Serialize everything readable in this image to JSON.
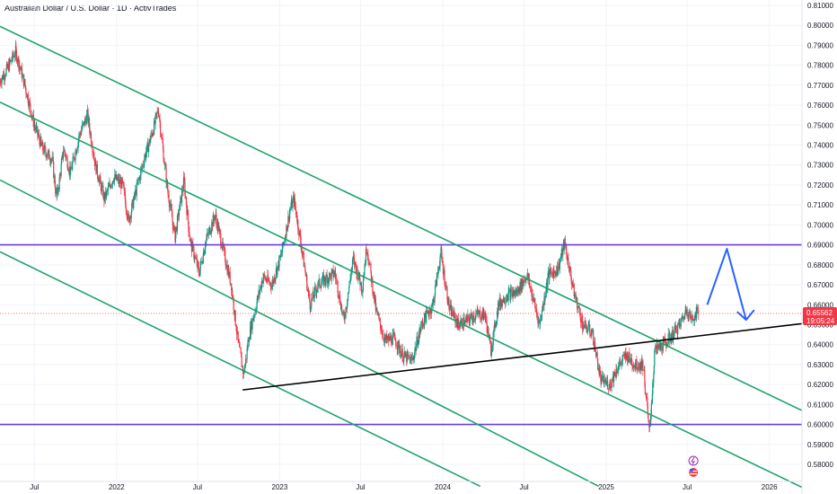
{
  "header": {
    "title": "Australian Dollar / U.S. Dollar · 1D · ActivTrades"
  },
  "price_label": {
    "value": "0.65562",
    "countdown": "19:05:24",
    "color": "#f23645"
  },
  "icons": [
    "lightning-icon",
    "us-flag-icon"
  ],
  "colors": {
    "up": "#089981",
    "down": "#f23645",
    "channel": "#1ea36a",
    "horizontal": "#6c3fd9",
    "trendline": "#000000",
    "arrow": "#2962ff"
  },
  "chart_data": {
    "type": "candlestick",
    "title": "Australian Dollar / U.S. Dollar · 1D · ActivTrades",
    "x_ticks": [
      "Jul",
      "2022",
      "Jul",
      "2023",
      "Jul",
      "2024",
      "Jul",
      "2025",
      "Jul",
      "2026"
    ],
    "x_tick_dates": [
      "2021-07-01",
      "2022-01-01",
      "2022-07-01",
      "2023-01-01",
      "2023-07-01",
      "2024-01-01",
      "2024-07-01",
      "2025-01-01",
      "2025-07-01",
      "2026-01-01"
    ],
    "y_ticks": [
      "0.81000",
      "0.80000",
      "0.79000",
      "0.78000",
      "0.77000",
      "0.76000",
      "0.75000",
      "0.74000",
      "0.73000",
      "0.72000",
      "0.71000",
      "0.70000",
      "0.69000",
      "0.68000",
      "0.67000",
      "0.66000",
      "0.65000",
      "0.64000",
      "0.63000",
      "0.62000",
      "0.61000",
      "0.60000",
      "0.59000",
      "0.58000"
    ],
    "ylim": [
      0.5775,
      0.8125
    ],
    "xlim": [
      "2021-04-15",
      "2026-03-15"
    ],
    "last_price": 0.65562,
    "series_close_weekly": [
      {
        "x": "2021-04-15",
        "y": 0.772
      },
      {
        "x": "2021-05-01",
        "y": 0.778
      },
      {
        "x": "2021-05-20",
        "y": 0.787
      },
      {
        "x": "2021-06-10",
        "y": 0.77
      },
      {
        "x": "2021-07-01",
        "y": 0.75
      },
      {
        "x": "2021-07-20",
        "y": 0.738
      },
      {
        "x": "2021-08-10",
        "y": 0.733
      },
      {
        "x": "2021-08-20",
        "y": 0.713
      },
      {
        "x": "2021-09-05",
        "y": 0.738
      },
      {
        "x": "2021-09-20",
        "y": 0.726
      },
      {
        "x": "2021-10-10",
        "y": 0.745
      },
      {
        "x": "2021-10-28",
        "y": 0.755
      },
      {
        "x": "2021-11-15",
        "y": 0.73
      },
      {
        "x": "2021-12-05",
        "y": 0.713
      },
      {
        "x": "2021-12-25",
        "y": 0.724
      },
      {
        "x": "2022-01-15",
        "y": 0.72
      },
      {
        "x": "2022-01-28",
        "y": 0.702
      },
      {
        "x": "2022-02-15",
        "y": 0.718
      },
      {
        "x": "2022-03-05",
        "y": 0.734
      },
      {
        "x": "2022-03-25",
        "y": 0.748
      },
      {
        "x": "2022-04-05",
        "y": 0.758
      },
      {
        "x": "2022-04-25",
        "y": 0.718
      },
      {
        "x": "2022-05-12",
        "y": 0.694
      },
      {
        "x": "2022-06-01",
        "y": 0.722
      },
      {
        "x": "2022-06-15",
        "y": 0.692
      },
      {
        "x": "2022-07-05",
        "y": 0.676
      },
      {
        "x": "2022-07-20",
        "y": 0.692
      },
      {
        "x": "2022-08-10",
        "y": 0.705
      },
      {
        "x": "2022-08-25",
        "y": 0.69
      },
      {
        "x": "2022-09-15",
        "y": 0.67
      },
      {
        "x": "2022-10-01",
        "y": 0.64
      },
      {
        "x": "2022-10-13",
        "y": 0.625
      },
      {
        "x": "2022-10-25",
        "y": 0.645
      },
      {
        "x": "2022-11-10",
        "y": 0.66
      },
      {
        "x": "2022-11-25",
        "y": 0.674
      },
      {
        "x": "2022-12-15",
        "y": 0.67
      },
      {
        "x": "2023-01-05",
        "y": 0.685
      },
      {
        "x": "2023-01-25",
        "y": 0.708
      },
      {
        "x": "2023-02-02",
        "y": 0.713
      },
      {
        "x": "2023-02-20",
        "y": 0.688
      },
      {
        "x": "2023-03-10",
        "y": 0.66
      },
      {
        "x": "2023-03-28",
        "y": 0.67
      },
      {
        "x": "2023-04-15",
        "y": 0.673
      },
      {
        "x": "2023-05-05",
        "y": 0.676
      },
      {
        "x": "2023-05-25",
        "y": 0.652
      },
      {
        "x": "2023-06-15",
        "y": 0.683
      },
      {
        "x": "2023-07-05",
        "y": 0.668
      },
      {
        "x": "2023-07-15",
        "y": 0.69
      },
      {
        "x": "2023-08-05",
        "y": 0.657
      },
      {
        "x": "2023-08-25",
        "y": 0.642
      },
      {
        "x": "2023-09-15",
        "y": 0.643
      },
      {
        "x": "2023-10-05",
        "y": 0.634
      },
      {
        "x": "2023-10-25",
        "y": 0.632
      },
      {
        "x": "2023-11-15",
        "y": 0.65
      },
      {
        "x": "2023-12-10",
        "y": 0.66
      },
      {
        "x": "2023-12-28",
        "y": 0.686
      },
      {
        "x": "2024-01-15",
        "y": 0.659
      },
      {
        "x": "2024-02-05",
        "y": 0.65
      },
      {
        "x": "2024-02-25",
        "y": 0.652
      },
      {
        "x": "2024-03-15",
        "y": 0.655
      },
      {
        "x": "2024-04-05",
        "y": 0.655
      },
      {
        "x": "2024-04-18",
        "y": 0.637
      },
      {
        "x": "2024-05-05",
        "y": 0.66
      },
      {
        "x": "2024-05-25",
        "y": 0.665
      },
      {
        "x": "2024-06-15",
        "y": 0.666
      },
      {
        "x": "2024-07-08",
        "y": 0.675
      },
      {
        "x": "2024-08-05",
        "y": 0.65
      },
      {
        "x": "2024-08-25",
        "y": 0.675
      },
      {
        "x": "2024-09-15",
        "y": 0.678
      },
      {
        "x": "2024-09-30",
        "y": 0.691
      },
      {
        "x": "2024-10-20",
        "y": 0.667
      },
      {
        "x": "2024-11-10",
        "y": 0.65
      },
      {
        "x": "2024-12-01",
        "y": 0.646
      },
      {
        "x": "2024-12-20",
        "y": 0.622
      },
      {
        "x": "2025-01-10",
        "y": 0.62
      },
      {
        "x": "2025-01-25",
        "y": 0.628
      },
      {
        "x": "2025-02-15",
        "y": 0.635
      },
      {
        "x": "2025-03-05",
        "y": 0.63
      },
      {
        "x": "2025-03-25",
        "y": 0.63
      },
      {
        "x": "2025-04-08",
        "y": 0.595
      },
      {
        "x": "2025-04-20",
        "y": 0.637
      },
      {
        "x": "2025-05-10",
        "y": 0.64
      },
      {
        "x": "2025-05-30",
        "y": 0.645
      },
      {
        "x": "2025-06-15",
        "y": 0.65
      },
      {
        "x": "2025-07-01",
        "y": 0.658
      },
      {
        "x": "2025-07-12",
        "y": 0.652
      },
      {
        "x": "2025-07-20",
        "y": 0.656
      },
      {
        "x": "2025-07-28",
        "y": 0.6556
      }
    ],
    "annotations": {
      "horizontal_levels": [
        0.69,
        0.6
      ],
      "descending_channel_lines": [
        {
          "start": {
            "x": "2021-04-15",
            "y": 0.7995
          },
          "end": {
            "x": "2026-03-15",
            "y": 0.607
          }
        },
        {
          "start": {
            "x": "2021-04-15",
            "y": 0.7615
          },
          "end": {
            "x": "2026-03-15",
            "y": 0.5685
          }
        },
        {
          "start": {
            "x": "2021-04-15",
            "y": 0.7225
          },
          "end": {
            "x": "2024-12-15",
            "y": 0.569
          }
        },
        {
          "start": {
            "x": "2021-04-15",
            "y": 0.6865
          },
          "end": {
            "x": "2024-03-25",
            "y": 0.569
          }
        }
      ],
      "ascending_trendline": {
        "start": {
          "x": "2022-10-10",
          "y": 0.6173
        },
        "end": {
          "x": "2026-03-15",
          "y": 0.6505
        }
      },
      "projection_arrow": [
        {
          "x": "2025-08-15",
          "y": 0.66
        },
        {
          "x": "2025-09-28",
          "y": 0.688
        },
        {
          "x": "2025-11-10",
          "y": 0.6524
        }
      ]
    }
  }
}
